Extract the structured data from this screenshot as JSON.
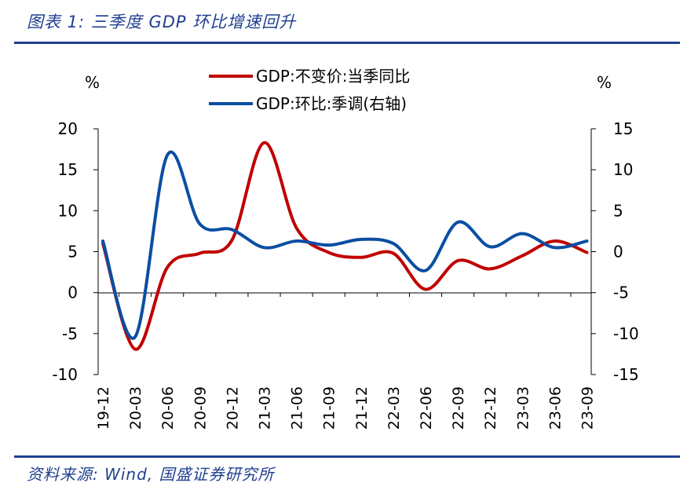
{
  "header": {
    "caption": "图表 1:  三季度 GDP 环比增速回升"
  },
  "footer": {
    "source": "资料来源:  Wind,  国盛证券研究所"
  },
  "colors": {
    "accent": "#1f3f8f",
    "series_red": "#c00000",
    "series_blue": "#0a4ea2"
  },
  "chart_data": {
    "type": "line",
    "title": "三季度 GDP 环比增速回升",
    "left_axis": {
      "unit": "%",
      "ylim": [
        -10,
        20
      ],
      "ticks": [
        "-10",
        "-5",
        "0",
        "5",
        "10",
        "15",
        "20"
      ]
    },
    "right_axis": {
      "unit": "%",
      "ylim": [
        -15,
        15
      ],
      "ticks": [
        "-15",
        "-10",
        "-5",
        "0",
        "5",
        "10",
        "15"
      ]
    },
    "x": [
      "19-12",
      "20-03",
      "20-06",
      "20-09",
      "20-12",
      "21-03",
      "21-06",
      "21-09",
      "21-12",
      "22-03",
      "22-06",
      "22-09",
      "22-12",
      "23-03",
      "23-06",
      "23-09"
    ],
    "legend_position": "top-center",
    "series": [
      {
        "name": "GDP:不变价:当季同比",
        "axis": "left",
        "color": "#c00000",
        "values": [
          6.0,
          -6.9,
          3.1,
          4.8,
          6.4,
          18.3,
          7.9,
          4.9,
          4.3,
          4.8,
          0.4,
          3.9,
          2.9,
          4.5,
          6.3,
          4.9
        ]
      },
      {
        "name": "GDP:环比:季调(右轴)",
        "axis": "right",
        "color": "#0a4ea2",
        "values": [
          1.3,
          -10.4,
          11.8,
          3.4,
          2.7,
          0.5,
          1.3,
          0.8,
          1.5,
          1.0,
          -2.3,
          3.6,
          0.6,
          2.2,
          0.5,
          1.3
        ]
      }
    ]
  }
}
